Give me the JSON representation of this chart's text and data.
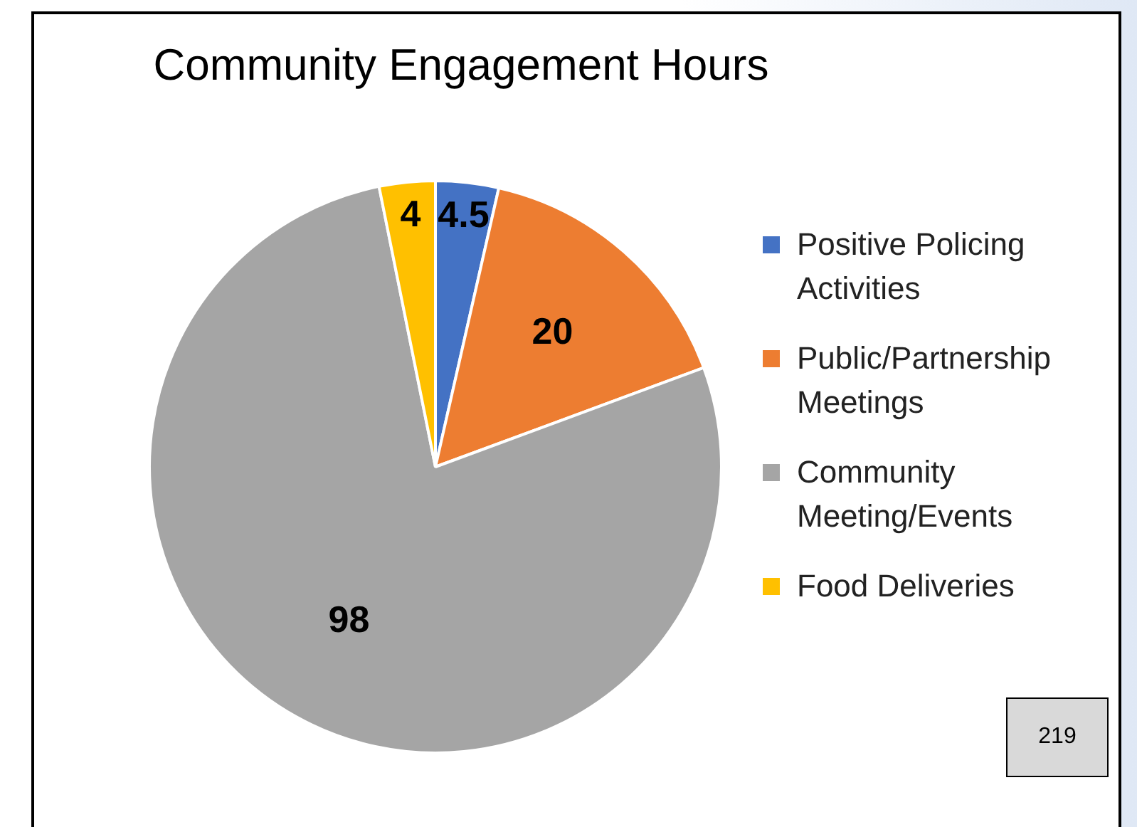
{
  "chart_data": {
    "type": "pie",
    "title": "Community Engagement Hours",
    "categories": [
      "Positive Policing Activities",
      "Public/Partnership Meetings",
      "Community Meeting/Events",
      "Food Deliveries"
    ],
    "values": [
      4.5,
      20,
      98,
      4
    ],
    "colors": [
      "#4472c4",
      "#ed7d31",
      "#a5a5a5",
      "#ffc000"
    ],
    "data_labels": true,
    "legend": "right",
    "annotations": [
      "219"
    ]
  }
}
